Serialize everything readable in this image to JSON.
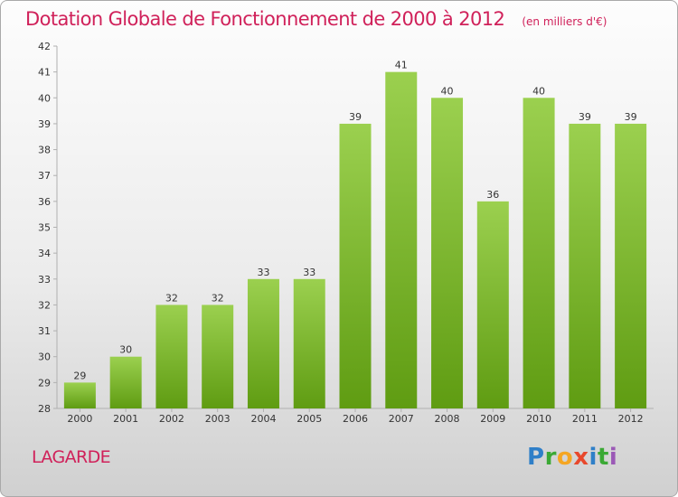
{
  "header": {
    "title": "Dotation Globale de Fonctionnement de 2000 à 2012",
    "subtitle": "(en milliers d'€)"
  },
  "entity": "LAGARDE",
  "logo": {
    "text": "Proxiti",
    "letters": [
      "P",
      "r",
      "o",
      "x",
      "i",
      "t",
      "i"
    ],
    "colors": [
      "#2f7fc8",
      "#3ba935",
      "#f5a623",
      "#e8482c",
      "#2f7fc8",
      "#3ba935",
      "#9b59b6"
    ]
  },
  "colors": {
    "accent": "#d0215a",
    "bar_top": "#9bd04f",
    "bar_bottom": "#5f9c12"
  },
  "chart_data": {
    "type": "bar",
    "title": "Dotation Globale de Fonctionnement de 2000 à 2012",
    "subtitle": "(en milliers d'€)",
    "categories": [
      "2000",
      "2001",
      "2002",
      "2003",
      "2004",
      "2005",
      "2006",
      "2007",
      "2008",
      "2009",
      "2010",
      "2011",
      "2012"
    ],
    "values": [
      29,
      30,
      32,
      32,
      33,
      33,
      39,
      41,
      40,
      36,
      40,
      39,
      39
    ],
    "data_labels": [
      "29",
      "30",
      "32",
      "32",
      "33",
      "33",
      "39",
      "41",
      "40",
      "36",
      "40",
      "39",
      "39"
    ],
    "ylim": [
      28,
      42
    ],
    "yticks": [
      "28",
      "29",
      "30",
      "31",
      "32",
      "33",
      "34",
      "35",
      "36",
      "37",
      "38",
      "39",
      "40",
      "41",
      "42"
    ],
    "xlabel": "",
    "ylabel": "",
    "grid": false,
    "legend": "none"
  }
}
